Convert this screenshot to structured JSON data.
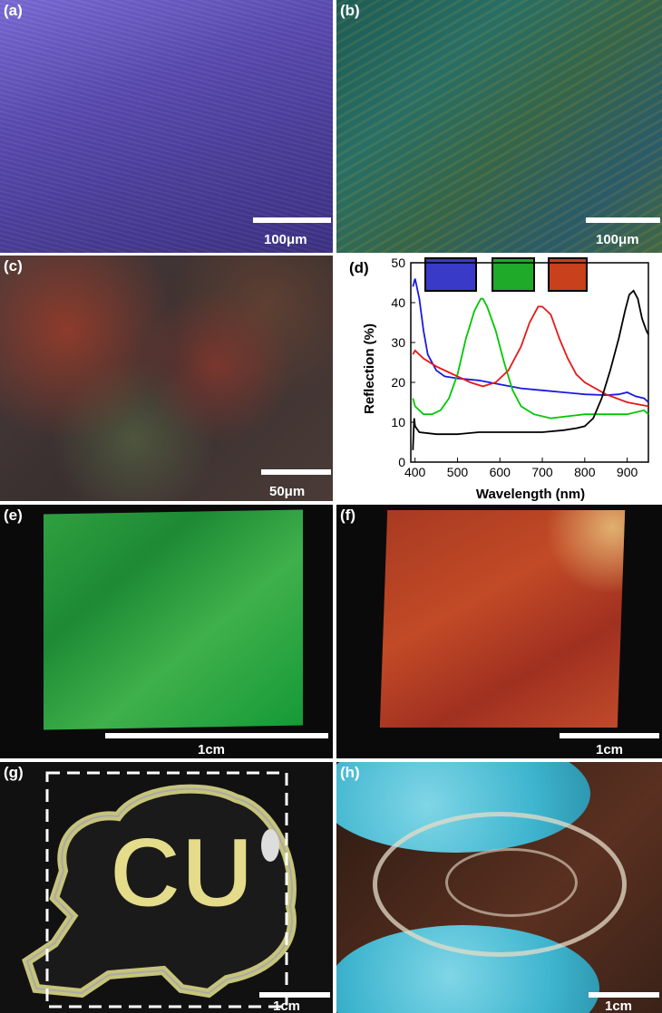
{
  "panels": {
    "a": {
      "label": "(a)",
      "scale_bar": "100μm"
    },
    "b": {
      "label": "(b)",
      "scale_bar": "100μm"
    },
    "c": {
      "label": "(c)",
      "scale_bar": "50μm"
    },
    "d": {
      "label": "(d)"
    },
    "e": {
      "label": "(e)",
      "scale_bar": "1cm"
    },
    "f": {
      "label": "(f)",
      "scale_bar": "1cm"
    },
    "g": {
      "label": "(g)",
      "scale_bar": "1cm",
      "logo_text": "CU"
    },
    "h": {
      "label": "(h)",
      "scale_bar": "1cm"
    }
  },
  "chart_data": {
    "type": "line",
    "xlabel": "Wavelength (nm)",
    "ylabel": "Reflection (%)",
    "xlim": [
      390,
      950
    ],
    "ylim": [
      0,
      50
    ],
    "xticks": [
      400,
      500,
      600,
      700,
      800,
      900
    ],
    "yticks": [
      0,
      10,
      20,
      30,
      40,
      50
    ],
    "grid": false,
    "legend": "color swatches above curves",
    "series": [
      {
        "color": "#1a1adf",
        "x": [
          395,
          400,
          410,
          420,
          430,
          450,
          470,
          500,
          550,
          600,
          650,
          700,
          750,
          800,
          850,
          880,
          900,
          920,
          940,
          950
        ],
        "y": [
          44,
          46,
          41,
          33,
          27,
          23,
          21.5,
          21,
          20.5,
          19.5,
          18.5,
          18,
          17.5,
          17,
          16.8,
          17,
          17.5,
          16.5,
          16,
          15
        ]
      },
      {
        "color": "#00c800",
        "x": [
          395,
          400,
          420,
          440,
          460,
          480,
          500,
          520,
          540,
          555,
          560,
          570,
          590,
          610,
          630,
          650,
          680,
          720,
          760,
          800,
          850,
          900,
          940,
          950
        ],
        "y": [
          16,
          14,
          12,
          12,
          13,
          16,
          22,
          31,
          38,
          41,
          41,
          39,
          33,
          25,
          18,
          14,
          12,
          11,
          11.5,
          12,
          12,
          12,
          13,
          12
        ]
      },
      {
        "color": "#e81818",
        "x": [
          395,
          400,
          420,
          450,
          480,
          500,
          530,
          560,
          590,
          620,
          650,
          670,
          690,
          700,
          720,
          740,
          760,
          780,
          800,
          850,
          900,
          950
        ],
        "y": [
          27,
          28,
          26,
          24,
          22.5,
          21.5,
          20,
          19,
          20,
          23,
          29,
          35,
          39,
          39,
          37,
          31,
          26,
          22,
          20,
          17,
          15,
          14
        ]
      },
      {
        "color": "#000000",
        "x": [
          395,
          398,
          400,
          410,
          450,
          500,
          550,
          600,
          650,
          700,
          750,
          780,
          800,
          820,
          840,
          860,
          880,
          895,
          905,
          915,
          925,
          935,
          945,
          950
        ],
        "y": [
          3,
          11,
          9,
          7.5,
          7,
          7,
          7.5,
          7.5,
          7.5,
          7.5,
          8,
          8.5,
          9,
          11,
          16,
          23,
          31,
          38,
          42,
          43,
          41,
          36,
          33,
          32
        ]
      }
    ]
  }
}
